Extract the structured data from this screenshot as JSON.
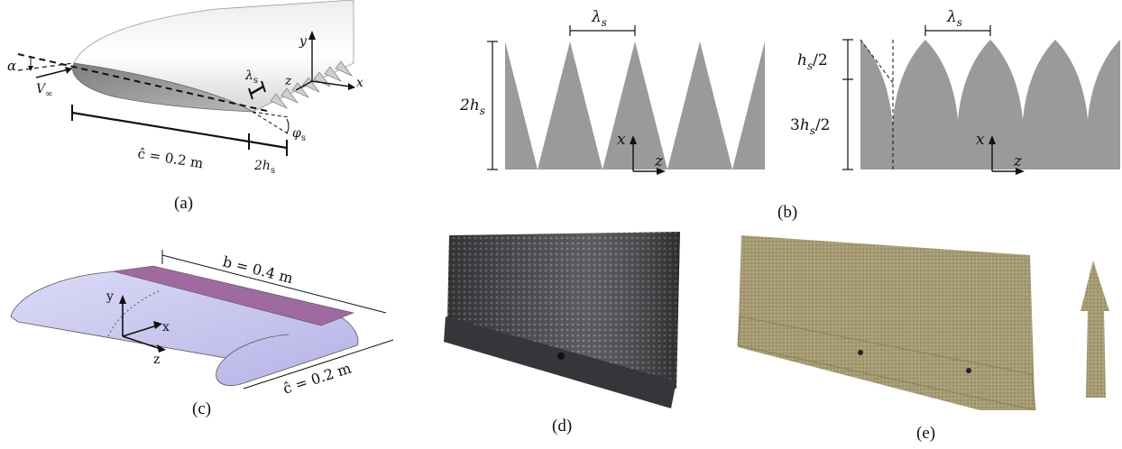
{
  "panel_a": {
    "caption": "(a)",
    "alpha": "α",
    "v_inf": "V",
    "v_inf_sub": "∞",
    "lambda": "λ",
    "lambda_sub": "s",
    "y": "y",
    "z": "z",
    "x": "x",
    "phi": "φ",
    "phi_sub": "s",
    "chord": "ĉ = 0.2 m",
    "two_h": "2h",
    "two_h_sub": "s"
  },
  "panel_b": {
    "caption": "(b)",
    "lambda_left": "λ",
    "lambda_left_sub": "s",
    "lambda_right": "λ",
    "lambda_right_sub": "s",
    "two_h": "2h",
    "two_h_sub": "s",
    "h_half": "h",
    "h_half_sub": "s",
    "h_half_tail": "/2",
    "three_h": "3h",
    "three_h_sub": "s",
    "three_h_tail": "/2",
    "x_left": "x",
    "z_left": "z",
    "x_right": "x",
    "z_right": "z"
  },
  "panel_c": {
    "caption": "(c)",
    "span": "b = 0.4 m",
    "chord": "ĉ = 0.2 m",
    "y": "y",
    "x": "x",
    "z": "z"
  },
  "panel_d": {
    "caption": "(d)"
  },
  "panel_e": {
    "caption": "(e)"
  },
  "colors": {
    "serration_gray": "#9a9a9a",
    "wing_purple": "#c9c6f0",
    "wing_band": "#9e6aa0",
    "plate_dark": "#3a3a3e",
    "foam": "#a59a72"
  }
}
